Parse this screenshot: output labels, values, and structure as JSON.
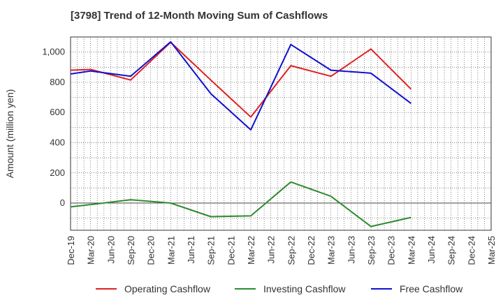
{
  "chart_data": {
    "type": "line",
    "title": "[3798]  Trend of 12-Month Moving Sum of Cashflows",
    "xlabel": "",
    "ylabel": "Amount (million yen)",
    "categories": [
      "Dec-19",
      "Mar-20",
      "Jun-20",
      "Sep-20",
      "Dec-20",
      "Mar-21",
      "Jun-21",
      "Sep-21",
      "Dec-21",
      "Mar-22",
      "Jun-22",
      "Sep-22",
      "Dec-22",
      "Mar-23",
      "Jun-23",
      "Sep-23",
      "Dec-23",
      "Mar-24",
      "Jun-24",
      "Sep-24",
      "Dec-24",
      "Mar-25"
    ],
    "ylim": [
      -180,
      1100
    ],
    "yticks": [
      0,
      200,
      400,
      600,
      800,
      1000
    ],
    "ytick_labels": [
      "0",
      "200",
      "400",
      "600",
      "800",
      "1,000"
    ],
    "grid": true,
    "legend_position": "bottom",
    "series": [
      {
        "name": "Operating Cashflow",
        "color": "#e02020",
        "points": [
          [
            "Dec-19",
            880
          ],
          [
            "Mar-20",
            885
          ],
          [
            "Sep-20",
            815
          ],
          [
            "Mar-21",
            1065
          ],
          [
            "Sep-21",
            815
          ],
          [
            "Mar-22",
            570
          ],
          [
            "Sep-22",
            910
          ],
          [
            "Mar-23",
            840
          ],
          [
            "Sep-23",
            1020
          ],
          [
            "Mar-24",
            755
          ]
        ]
      },
      {
        "name": "Investing Cashflow",
        "color": "#2e8b2e",
        "points": [
          [
            "Dec-19",
            -25
          ],
          [
            "Mar-20",
            -10
          ],
          [
            "Sep-20",
            22
          ],
          [
            "Mar-21",
            0
          ],
          [
            "Sep-21",
            -90
          ],
          [
            "Mar-22",
            -85
          ],
          [
            "Sep-22",
            140
          ],
          [
            "Mar-23",
            45
          ],
          [
            "Sep-23",
            -155
          ],
          [
            "Mar-24",
            -95
          ]
        ]
      },
      {
        "name": "Free Cashflow",
        "color": "#1010d0",
        "points": [
          [
            "Dec-19",
            855
          ],
          [
            "Mar-20",
            875
          ],
          [
            "Sep-20",
            840
          ],
          [
            "Mar-21",
            1068
          ],
          [
            "Sep-21",
            725
          ],
          [
            "Mar-22",
            485
          ],
          [
            "Sep-22",
            1050
          ],
          [
            "Mar-23",
            880
          ],
          [
            "Sep-23",
            860
          ],
          [
            "Mar-24",
            660
          ]
        ]
      }
    ]
  }
}
